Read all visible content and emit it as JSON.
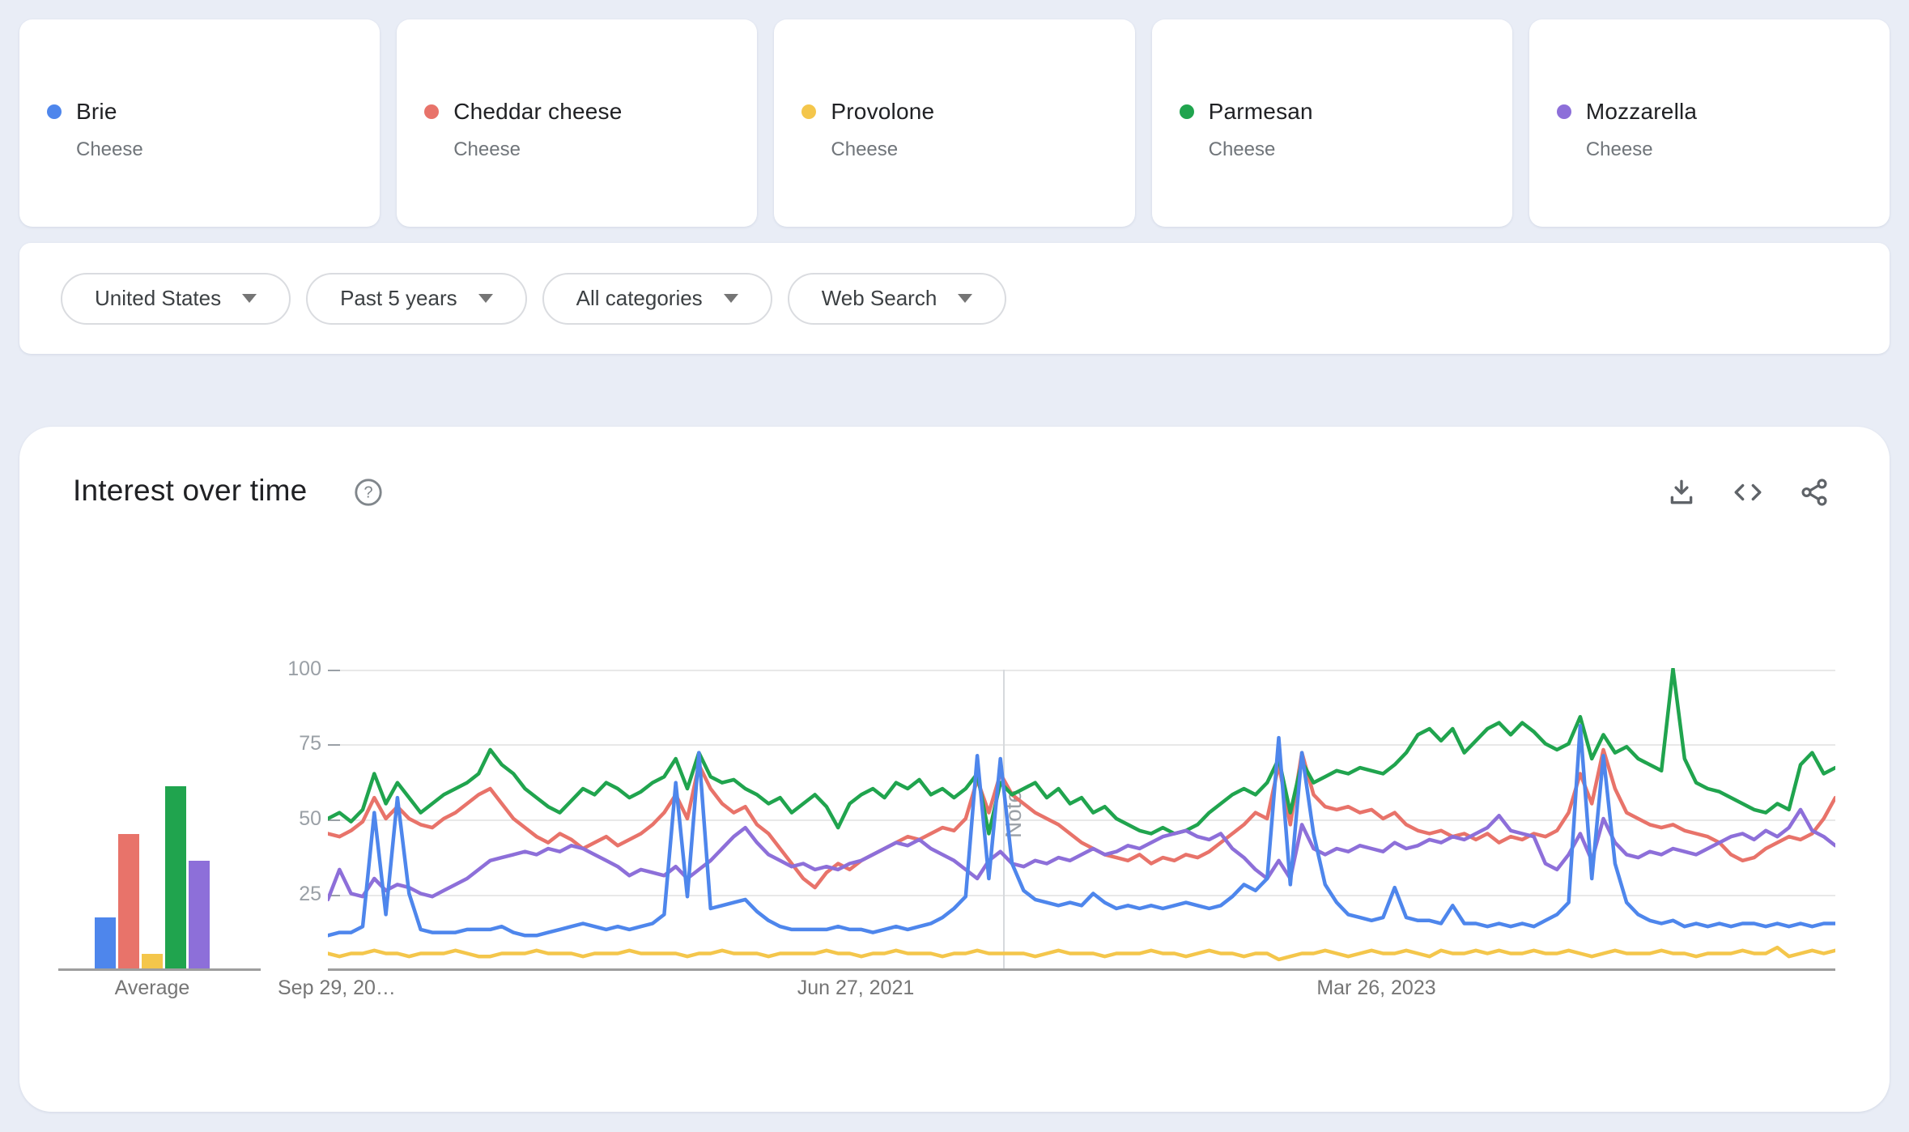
{
  "terms": [
    {
      "label": "Brie",
      "sublabel": "Cheese",
      "color": "#4e86ec"
    },
    {
      "label": "Cheddar cheese",
      "sublabel": "Cheese",
      "color": "#e8736a"
    },
    {
      "label": "Provolone",
      "sublabel": "Cheese",
      "color": "#f4c64b"
    },
    {
      "label": "Parmesan",
      "sublabel": "Cheese",
      "color": "#20a44e"
    },
    {
      "label": "Mozzarella",
      "sublabel": "Cheese",
      "color": "#8d6fd9"
    }
  ],
  "filters": [
    {
      "label": "United States"
    },
    {
      "label": "Past 5 years"
    },
    {
      "label": "All categories"
    },
    {
      "label": "Web Search"
    }
  ],
  "chart_header": {
    "title": "Interest over time"
  },
  "colors": {
    "page_bg": "#e9edf6",
    "panel_bg": "#ffffff",
    "grid": "#e8e8e8",
    "axis": "#9e9e9e",
    "tick_text": "#9aa0a6",
    "xlabel_text": "#757575",
    "title_text": "#202124",
    "icon": "#5f6368",
    "pill_border": "#dadce0",
    "pill_text": "#3c4043"
  },
  "chart_data": {
    "type": "line",
    "title": "Interest over time",
    "ylim": [
      0,
      100
    ],
    "grid": true,
    "y_tick_labels": [
      "100",
      "75",
      "50",
      "25"
    ],
    "x_tick_labels": [
      "Sep 29, 20…",
      "Jun 27, 2021",
      "Mar 26, 2023"
    ],
    "note_label": "Note",
    "points_interval": "2 weeks over past 5 years",
    "average_bars": {
      "label": "Average",
      "values": [
        17,
        45,
        5,
        61,
        36
      ]
    },
    "series": [
      {
        "name": "Brie",
        "color": "#4e86ec",
        "values": [
          11,
          12,
          12,
          14,
          52,
          18,
          57,
          25,
          13,
          12,
          12,
          12,
          13,
          13,
          13,
          14,
          12,
          11,
          11,
          12,
          13,
          14,
          15,
          14,
          13,
          14,
          13,
          14,
          15,
          18,
          62,
          24,
          72,
          20,
          21,
          22,
          23,
          19,
          16,
          14,
          13,
          13,
          13,
          13,
          14,
          13,
          13,
          12,
          13,
          14,
          13,
          14,
          15,
          17,
          20,
          24,
          71,
          30,
          70,
          35,
          26,
          23,
          22,
          21,
          22,
          21,
          25,
          22,
          20,
          21,
          20,
          21,
          20,
          21,
          22,
          21,
          20,
          21,
          24,
          28,
          26,
          30,
          77,
          28,
          72,
          45,
          28,
          22,
          18,
          17,
          16,
          17,
          27,
          17,
          16,
          16,
          15,
          21,
          15,
          15,
          14,
          15,
          14,
          15,
          14,
          16,
          18,
          22,
          81,
          30,
          71,
          35,
          22,
          18,
          16,
          15,
          16,
          14,
          15,
          14,
          15,
          14,
          15,
          15,
          14,
          15,
          14,
          15,
          14,
          15,
          15
        ]
      },
      {
        "name": "Cheddar cheese",
        "color": "#e8736a",
        "values": [
          45,
          44,
          46,
          49,
          57,
          50,
          54,
          50,
          48,
          47,
          50,
          52,
          55,
          58,
          60,
          55,
          50,
          47,
          44,
          42,
          45,
          43,
          40,
          42,
          44,
          41,
          43,
          45,
          48,
          52,
          58,
          50,
          68,
          60,
          55,
          52,
          54,
          48,
          45,
          40,
          35,
          30,
          27,
          32,
          35,
          33,
          36,
          38,
          40,
          42,
          44,
          43,
          45,
          47,
          46,
          50,
          63,
          52,
          65,
          58,
          55,
          52,
          50,
          48,
          45,
          42,
          40,
          38,
          37,
          36,
          38,
          35,
          37,
          36,
          38,
          37,
          39,
          42,
          45,
          48,
          52,
          50,
          68,
          48,
          72,
          58,
          54,
          53,
          54,
          52,
          53,
          50,
          52,
          48,
          46,
          45,
          46,
          44,
          45,
          43,
          45,
          42,
          44,
          43,
          45,
          44,
          46,
          52,
          65,
          55,
          73,
          60,
          52,
          50,
          48,
          47,
          48,
          46,
          45,
          44,
          42,
          38,
          36,
          37,
          40,
          42,
          44,
          43,
          45,
          50,
          57
        ]
      },
      {
        "name": "Provolone",
        "color": "#f4c64b",
        "values": [
          5,
          4,
          5,
          5,
          6,
          5,
          5,
          4,
          5,
          5,
          5,
          6,
          5,
          4,
          4,
          5,
          5,
          5,
          6,
          5,
          5,
          5,
          4,
          5,
          5,
          5,
          6,
          5,
          5,
          5,
          5,
          4,
          5,
          5,
          6,
          5,
          5,
          5,
          4,
          5,
          5,
          5,
          5,
          6,
          5,
          5,
          4,
          5,
          5,
          6,
          5,
          5,
          5,
          4,
          5,
          5,
          6,
          5,
          5,
          5,
          5,
          4,
          5,
          6,
          5,
          5,
          5,
          4,
          5,
          5,
          5,
          6,
          5,
          5,
          4,
          5,
          6,
          5,
          5,
          4,
          5,
          5,
          3,
          4,
          5,
          5,
          6,
          5,
          4,
          5,
          6,
          5,
          5,
          6,
          5,
          4,
          6,
          5,
          5,
          6,
          5,
          6,
          5,
          5,
          6,
          5,
          5,
          6,
          5,
          4,
          5,
          6,
          5,
          5,
          5,
          6,
          5,
          5,
          4,
          5,
          5,
          5,
          6,
          5,
          5,
          7,
          4,
          5,
          6,
          5,
          6
        ]
      },
      {
        "name": "Parmesan",
        "color": "#20a44e",
        "values": [
          50,
          52,
          49,
          53,
          65,
          55,
          62,
          57,
          52,
          55,
          58,
          60,
          62,
          65,
          73,
          68,
          65,
          60,
          57,
          54,
          52,
          56,
          60,
          58,
          62,
          60,
          57,
          59,
          62,
          64,
          70,
          60,
          72,
          64,
          62,
          63,
          60,
          58,
          55,
          57,
          52,
          55,
          58,
          54,
          47,
          55,
          58,
          60,
          57,
          62,
          60,
          63,
          58,
          60,
          57,
          60,
          65,
          45,
          62,
          58,
          60,
          62,
          57,
          60,
          55,
          57,
          52,
          54,
          50,
          48,
          46,
          45,
          47,
          45,
          46,
          48,
          52,
          55,
          58,
          60,
          58,
          62,
          70,
          52,
          69,
          62,
          64,
          66,
          65,
          67,
          66,
          65,
          68,
          72,
          78,
          80,
          76,
          80,
          72,
          76,
          80,
          82,
          78,
          82,
          79,
          75,
          73,
          75,
          84,
          70,
          78,
          72,
          74,
          70,
          68,
          66,
          100,
          70,
          62,
          60,
          59,
          57,
          55,
          53,
          52,
          55,
          53,
          68,
          72,
          65,
          67
        ]
      },
      {
        "name": "Mozzarella",
        "color": "#8d6fd9",
        "values": [
          23,
          33,
          25,
          24,
          30,
          26,
          28,
          27,
          25,
          24,
          26,
          28,
          30,
          33,
          36,
          37,
          38,
          39,
          38,
          40,
          39,
          41,
          40,
          38,
          36,
          34,
          31,
          33,
          32,
          31,
          34,
          30,
          33,
          36,
          40,
          44,
          47,
          42,
          38,
          36,
          34,
          35,
          33,
          34,
          33,
          35,
          36,
          38,
          40,
          42,
          41,
          43,
          40,
          38,
          36,
          33,
          30,
          36,
          39,
          35,
          34,
          36,
          35,
          37,
          36,
          38,
          40,
          38,
          39,
          41,
          40,
          42,
          44,
          45,
          46,
          44,
          43,
          45,
          40,
          37,
          33,
          30,
          36,
          30,
          48,
          40,
          38,
          40,
          39,
          41,
          40,
          39,
          42,
          40,
          41,
          43,
          42,
          44,
          43,
          45,
          47,
          51,
          46,
          45,
          44,
          35,
          33,
          38,
          45,
          36,
          50,
          42,
          38,
          37,
          39,
          38,
          40,
          39,
          38,
          40,
          42,
          44,
          45,
          43,
          46,
          44,
          47,
          53,
          46,
          44,
          41
        ]
      }
    ]
  }
}
